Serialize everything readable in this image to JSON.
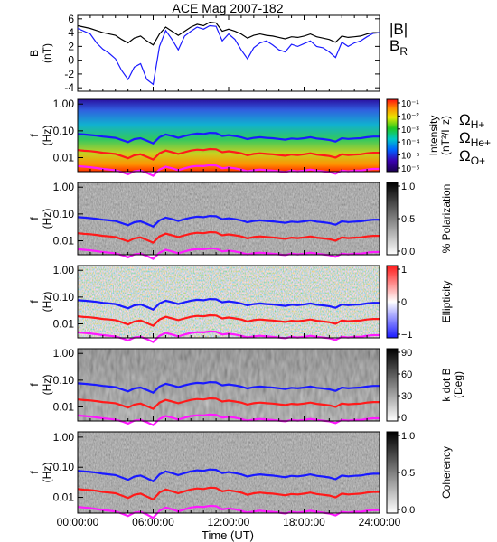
{
  "title": "ACE Mag 2007-182",
  "colors": {
    "frame": "#000000",
    "bmag": "#000000",
    "br": "#1a1aff",
    "h_plus": "#1a1aff",
    "he_plus": "#ff1a1a",
    "o_plus": "#ff1aff"
  },
  "legend": {
    "bmag": "|B|",
    "br_main": "B",
    "br_sub": "R",
    "omega": "Ω",
    "h_sub": "H+",
    "he_sub": "He+",
    "o_sub": "O+"
  },
  "xaxis": {
    "label": "Time  (UT)",
    "ticks": [
      "00:00:00",
      "06:00:00",
      "12:00:00",
      "18:00:00",
      "24:00:00"
    ]
  },
  "chart_data": [
    {
      "type": "line",
      "panel": "B field",
      "ylabel": "B",
      "yunit": "(nT)",
      "ylim": [
        -4.5,
        6.5
      ],
      "yticks": [
        "6",
        "4",
        "2",
        "0",
        "-2",
        "-4"
      ],
      "x_hours": [
        0,
        0.5,
        1,
        1.5,
        2,
        2.5,
        3,
        3.5,
        4,
        4.5,
        5,
        5.5,
        6,
        6.5,
        7,
        7.5,
        8,
        8.5,
        9,
        9.5,
        10,
        10.5,
        11,
        11.5,
        12,
        12.5,
        13,
        13.5,
        14,
        14.5,
        15,
        15.5,
        16,
        16.5,
        17,
        17.5,
        18,
        18.5,
        19,
        19.5,
        20,
        20.5,
        21,
        21.5,
        22,
        22.5,
        23,
        23.5,
        24
      ],
      "series": [
        {
          "name": "|B|",
          "values": [
            5.0,
            4.8,
            4.6,
            4.3,
            4.0,
            3.8,
            3.6,
            3.0,
            2.5,
            3.2,
            3.5,
            2.8,
            2.2,
            3.8,
            4.8,
            4.2,
            3.6,
            4.2,
            4.8,
            5.2,
            5.0,
            5.5,
            5.4,
            4.2,
            4.5,
            4.2,
            3.8,
            3.2,
            3.6,
            3.8,
            3.6,
            3.5,
            3.3,
            3.1,
            3.4,
            3.3,
            3.5,
            3.8,
            3.4,
            3.2,
            3.0,
            2.6,
            3.5,
            3.3,
            3.4,
            3.5,
            3.8,
            4.0,
            4.0
          ]
        },
        {
          "name": "BR",
          "values": [
            4.6,
            4.2,
            3.8,
            2.5,
            1.6,
            1.0,
            0.2,
            -1.5,
            -2.8,
            -1.0,
            -0.5,
            -2.8,
            -3.5,
            2.0,
            4.3,
            3.0,
            1.5,
            3.5,
            4.2,
            4.8,
            4.5,
            5.0,
            4.9,
            2.8,
            3.8,
            3.0,
            1.5,
            0.2,
            1.8,
            2.5,
            2.8,
            2.2,
            1.5,
            1.2,
            2.3,
            2.0,
            2.4,
            2.8,
            2.0,
            1.8,
            1.2,
            0.4,
            2.6,
            2.0,
            2.5,
            2.8,
            3.4,
            3.9,
            4.0
          ]
        }
      ]
    },
    {
      "type": "heatmap",
      "panel": "Intensity spectrogram",
      "ylabel": "f",
      "yunit": "(Hz)",
      "ylog": true,
      "ylim": [
        0.003,
        1.5
      ],
      "yticks": [
        "1.00",
        "0.10",
        "0.01"
      ],
      "colorbar_label_line1": "Intensity",
      "colorbar_label_line2": "(nT²/Hz)",
      "colorbar_ticks": [
        "10⁻¹",
        "10⁻²",
        "10⁻³",
        "10⁻⁴",
        "10⁻⁵",
        "10⁻⁶"
      ]
    },
    {
      "type": "heatmap",
      "panel": "Polarization spectrogram",
      "ylabel": "f",
      "yunit": "(Hz)",
      "ylog": true,
      "ylim": [
        0.003,
        1.5
      ],
      "yticks": [
        "1.00",
        "0.10",
        "0.01"
      ],
      "colorbar_label_line1": "% Polarization",
      "colorbar_ticks": [
        "1.0",
        "0.5",
        "0.0"
      ]
    },
    {
      "type": "heatmap",
      "panel": "Ellipticity spectrogram",
      "ylabel": "f",
      "yunit": "(Hz)",
      "ylog": true,
      "ylim": [
        0.003,
        1.5
      ],
      "yticks": [
        "1.00",
        "0.10",
        "0.01"
      ],
      "colorbar_label_line1": "Ellipticity",
      "colorbar_ticks": [
        "1",
        "0",
        "−1"
      ]
    },
    {
      "type": "heatmap",
      "panel": "k dot B spectrogram",
      "ylabel": "f",
      "yunit": "(Hz)",
      "ylog": true,
      "ylim": [
        0.003,
        1.5
      ],
      "yticks": [
        "1.00",
        "0.10",
        "0.01"
      ],
      "colorbar_label_line1": "k dot B",
      "colorbar_label_line2": "(Deg)",
      "colorbar_ticks": [
        "90",
        "60",
        "30",
        "0"
      ]
    },
    {
      "type": "heatmap",
      "panel": "Coherency spectrogram",
      "ylabel": "f",
      "yunit": "(Hz)",
      "ylog": true,
      "ylim": [
        0.003,
        1.5
      ],
      "yticks": [
        "1.00",
        "0.10",
        "0.01"
      ],
      "colorbar_label_line1": "Coherency",
      "colorbar_ticks": [
        "1.0",
        "0.5",
        "0.0"
      ]
    }
  ],
  "gyrofrequency": {
    "x_hours": [
      0,
      0.5,
      1,
      1.5,
      2,
      2.5,
      3,
      3.5,
      4,
      4.5,
      5,
      5.5,
      6,
      6.5,
      7,
      7.5,
      8,
      8.5,
      9,
      9.5,
      10,
      10.5,
      11,
      11.5,
      12,
      12.5,
      13,
      13.5,
      14,
      14.5,
      15,
      15.5,
      16,
      16.5,
      17,
      17.5,
      18,
      18.5,
      19,
      19.5,
      20,
      20.5,
      21,
      21.5,
      22,
      22.5,
      23,
      23.5,
      24
    ],
    "h_plus_hz": [
      0.076,
      0.073,
      0.07,
      0.066,
      0.061,
      0.058,
      0.055,
      0.046,
      0.038,
      0.049,
      0.053,
      0.043,
      0.034,
      0.058,
      0.073,
      0.064,
      0.055,
      0.064,
      0.073,
      0.079,
      0.076,
      0.084,
      0.082,
      0.064,
      0.069,
      0.064,
      0.058,
      0.049,
      0.055,
      0.058,
      0.055,
      0.053,
      0.05,
      0.047,
      0.052,
      0.05,
      0.053,
      0.058,
      0.052,
      0.049,
      0.046,
      0.04,
      0.053,
      0.05,
      0.052,
      0.053,
      0.058,
      0.061,
      0.061
    ],
    "he_plus_hz": [
      0.019,
      0.018,
      0.0175,
      0.0165,
      0.0152,
      0.0145,
      0.0137,
      0.0115,
      0.0095,
      0.0122,
      0.0133,
      0.0107,
      0.0085,
      0.0145,
      0.0183,
      0.016,
      0.0137,
      0.016,
      0.0183,
      0.0198,
      0.019,
      0.021,
      0.0205,
      0.016,
      0.0172,
      0.016,
      0.0145,
      0.0122,
      0.0137,
      0.0145,
      0.0137,
      0.0133,
      0.0125,
      0.0118,
      0.013,
      0.0125,
      0.0133,
      0.0145,
      0.013,
      0.0122,
      0.0115,
      0.01,
      0.0133,
      0.0125,
      0.013,
      0.0133,
      0.0145,
      0.0152,
      0.0152
    ],
    "o_plus_hz": [
      0.0048,
      0.0046,
      0.0044,
      0.0041,
      0.0038,
      0.0036,
      0.0034,
      0.0029,
      0.0024,
      0.0031,
      0.0033,
      0.0027,
      0.0021,
      0.0036,
      0.0046,
      0.004,
      0.0034,
      0.004,
      0.0046,
      0.0049,
      0.0048,
      0.0052,
      0.0051,
      0.004,
      0.0043,
      0.004,
      0.0036,
      0.0031,
      0.0034,
      0.0036,
      0.0034,
      0.0033,
      0.0031,
      0.0029,
      0.0033,
      0.0031,
      0.0033,
      0.0036,
      0.0033,
      0.0031,
      0.0029,
      0.0025,
      0.0033,
      0.0031,
      0.0033,
      0.0033,
      0.0036,
      0.0038,
      0.0038
    ]
  }
}
